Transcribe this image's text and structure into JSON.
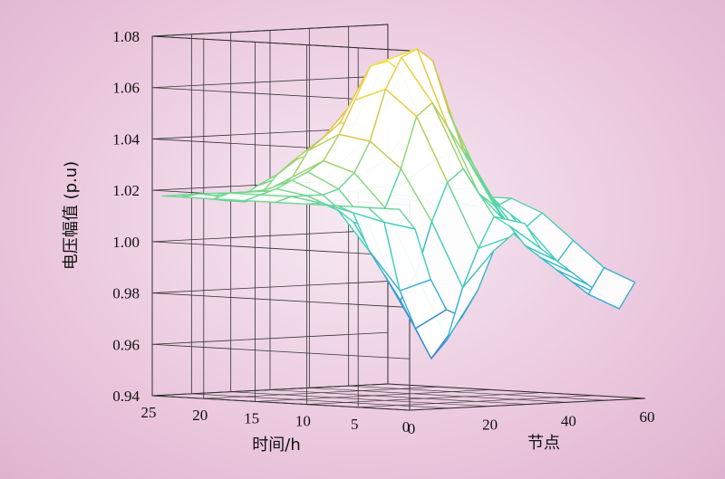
{
  "chart_data": {
    "type": "surface3d",
    "title": "",
    "zlabel": "电压幅值 (p.u)",
    "xlabel": "节点",
    "ylabel": "时间/h",
    "xlim": [
      0,
      60
    ],
    "ylim": [
      0,
      25
    ],
    "zlim": [
      0.94,
      1.08
    ],
    "z_ticks": [
      "0.94",
      "0.96",
      "0.98",
      "1.00",
      "1.02",
      "1.04",
      "1.06",
      "1.08"
    ],
    "x_ticks": [
      "0",
      "20",
      "40",
      "60"
    ],
    "y_ticks": [
      "0",
      "5",
      "10",
      "15",
      "20",
      "25"
    ],
    "colormap": [
      "#3a5cc8",
      "#38a9d6",
      "#45d3b8",
      "#8ed67a",
      "#e9c23f",
      "#f6ee44"
    ],
    "nodes": [
      0,
      4,
      8,
      12,
      16,
      20,
      24,
      28,
      32,
      36,
      40,
      44,
      48,
      52,
      56,
      60
    ],
    "hours": [
      1,
      4,
      7,
      10,
      13,
      16,
      19,
      22,
      24
    ],
    "voltage": [
      [
        1.018,
        1.01,
        0.99,
        0.978,
        0.975,
        0.985,
        1.0,
        1.005,
        1.01,
        1.0,
        0.995,
        0.99,
        0.985,
        0.98,
        0.975,
        0.985
      ],
      [
        1.018,
        1.012,
        0.985,
        0.97,
        0.958,
        0.965,
        0.985,
        1.0,
        1.012,
        1.008,
        1.0,
        0.995,
        0.99,
        0.985,
        0.98,
        0.99
      ],
      [
        1.018,
        1.015,
        1.0,
        0.99,
        0.98,
        0.99,
        1.01,
        1.025,
        1.03,
        1.02,
        1.015,
        1.005,
        1.0,
        0.995,
        0.992,
        1.0
      ],
      [
        1.018,
        1.018,
        1.015,
        1.01,
        1.008,
        1.015,
        1.03,
        1.05,
        1.055,
        1.045,
        1.035,
        1.025,
        1.015,
        1.01,
        1.005,
        1.01
      ],
      [
        1.018,
        1.02,
        1.02,
        1.02,
        1.022,
        1.028,
        1.04,
        1.06,
        1.072,
        1.075,
        1.07,
        1.05,
        1.035,
        1.02,
        1.012,
        1.015
      ],
      [
        1.018,
        1.02,
        1.022,
        1.025,
        1.028,
        1.032,
        1.042,
        1.055,
        1.068,
        1.07,
        1.065,
        1.048,
        1.03,
        1.018,
        1.012,
        1.015
      ],
      [
        1.018,
        1.02,
        1.02,
        1.02,
        1.02,
        1.025,
        1.035,
        1.04,
        1.045,
        1.045,
        1.04,
        1.03,
        1.02,
        1.015,
        1.012,
        1.014
      ],
      [
        1.018,
        1.019,
        1.018,
        1.016,
        1.015,
        1.018,
        1.025,
        1.03,
        1.032,
        1.03,
        1.028,
        1.022,
        1.018,
        1.015,
        1.013,
        1.014
      ],
      [
        1.018,
        1.018,
        1.017,
        1.016,
        1.015,
        1.016,
        1.02,
        1.022,
        1.024,
        1.022,
        1.02,
        1.018,
        1.016,
        1.015,
        1.014,
        1.014
      ]
    ],
    "grid": true
  }
}
